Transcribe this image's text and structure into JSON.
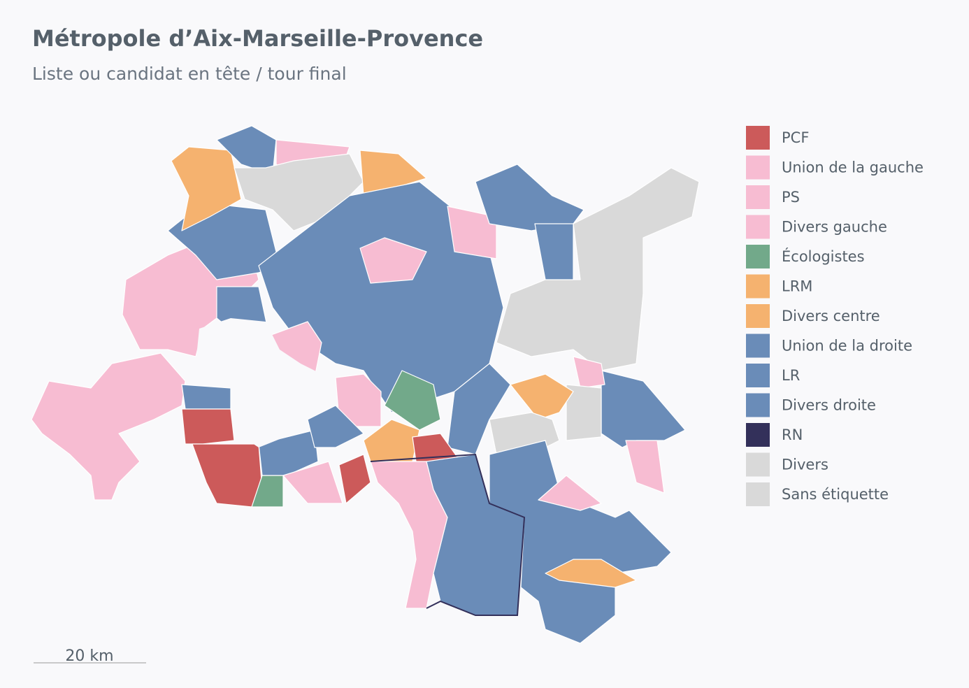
{
  "header": {
    "title": "Métropole d’Aix-Marseille-Provence",
    "subtitle": "Liste ou candidat en tête / tour final"
  },
  "legend": [
    {
      "label": "PCF",
      "color": "#cc5a5a"
    },
    {
      "label": "Union de la gauche",
      "color": "#f7bcd2"
    },
    {
      "label": "PS",
      "color": "#f7bcd2"
    },
    {
      "label": "Divers gauche",
      "color": "#f7bcd2"
    },
    {
      "label": "Écologistes",
      "color": "#72a98a"
    },
    {
      "label": "LRM",
      "color": "#f5b26f"
    },
    {
      "label": "Divers centre",
      "color": "#f5b26f"
    },
    {
      "label": "Union de la droite",
      "color": "#6a8cb8"
    },
    {
      "label": "LR",
      "color": "#6a8cb8"
    },
    {
      "label": "Divers droite",
      "color": "#6a8cb8"
    },
    {
      "label": "RN",
      "color": "#33305a"
    },
    {
      "label": "Divers",
      "color": "#d9d9d9"
    },
    {
      "label": "Sans étiquette",
      "color": "#d9d9d9"
    }
  ],
  "scale_bar": {
    "label": "20 km"
  }
}
